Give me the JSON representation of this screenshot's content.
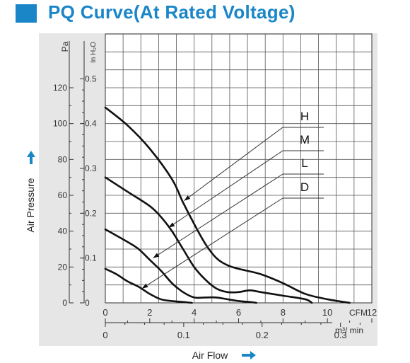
{
  "page": {
    "title": "PQ Curve(At Rated Voltage)",
    "accent_color": "#1a86c8",
    "panel_color": "#e6e6e6"
  },
  "chart_data": {
    "type": "line",
    "title": "PQ Curve(At Rated Voltage)",
    "x_axes": [
      {
        "unit": "CFM",
        "ticks": [
          "0",
          "2",
          "4",
          "6",
          "8",
          "10",
          "12"
        ],
        "range": [
          0,
          12
        ]
      },
      {
        "unit": "m³/ min",
        "ticks": [
          "0",
          "0.1",
          "0.2",
          "0.3"
        ],
        "range": [
          0,
          0.34
        ]
      }
    ],
    "y_axes": [
      {
        "unit": "Pa",
        "ticks": [
          "0",
          "20",
          "40",
          "60",
          "80",
          "100",
          "120"
        ],
        "range": [
          0,
          150
        ]
      },
      {
        "unit": "In H₂O",
        "ticks": [
          "0",
          "0.1",
          "0.2",
          "0.3",
          "0.4",
          "0.5"
        ],
        "range": [
          0,
          0.6
        ]
      }
    ],
    "xlabel": "Air Flow",
    "ylabel": "Air Pressure",
    "grid": true,
    "series": [
      {
        "name": "H",
        "points": [
          [
            0,
            109
          ],
          [
            1,
            99
          ],
          [
            2,
            86
          ],
          [
            3,
            69
          ],
          [
            3.5,
            56
          ],
          [
            4,
            44
          ],
          [
            4.5,
            33
          ],
          [
            5,
            25
          ],
          [
            5.5,
            21
          ],
          [
            6,
            19
          ],
          [
            7,
            16
          ],
          [
            8,
            11
          ],
          [
            9,
            5
          ],
          [
            10,
            2
          ],
          [
            11,
            0
          ]
        ]
      },
      {
        "name": "M",
        "points": [
          [
            0,
            70
          ],
          [
            1,
            62
          ],
          [
            2,
            54
          ],
          [
            2.5,
            48
          ],
          [
            3,
            40
          ],
          [
            3.5,
            30
          ],
          [
            4,
            20
          ],
          [
            4.5,
            13
          ],
          [
            5,
            8
          ],
          [
            5.5,
            6
          ],
          [
            6,
            6
          ],
          [
            6.5,
            7
          ],
          [
            7,
            6
          ],
          [
            8,
            4
          ],
          [
            9,
            2
          ],
          [
            9.3,
            0
          ]
        ]
      },
      {
        "name": "L",
        "points": [
          [
            0,
            41
          ],
          [
            1,
            34
          ],
          [
            1.5,
            30
          ],
          [
            2,
            24
          ],
          [
            2.5,
            18
          ],
          [
            3,
            11
          ],
          [
            3.5,
            6
          ],
          [
            4,
            3
          ],
          [
            4.5,
            3
          ],
          [
            5,
            3
          ],
          [
            5.5,
            2
          ],
          [
            6,
            1
          ],
          [
            6.5,
            0.5
          ],
          [
            6.8,
            0
          ]
        ]
      },
      {
        "name": "D",
        "points": [
          [
            0,
            19
          ],
          [
            0.5,
            16
          ],
          [
            1,
            12
          ],
          [
            1.5,
            9
          ],
          [
            2,
            5
          ],
          [
            2.5,
            2
          ],
          [
            3,
            1
          ],
          [
            3.5,
            0.5
          ],
          [
            3.9,
            0
          ]
        ]
      }
    ]
  }
}
